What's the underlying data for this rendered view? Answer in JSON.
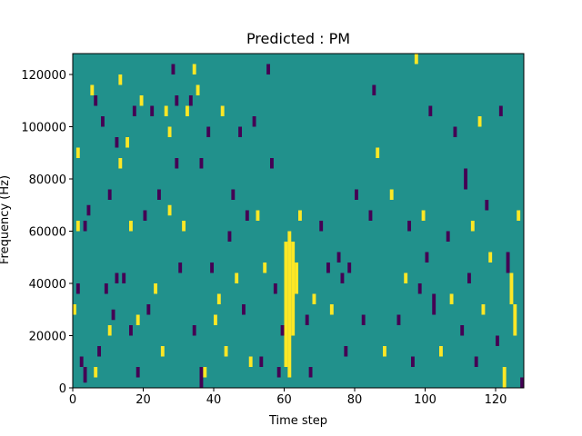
{
  "chart_data": {
    "type": "heatmap",
    "title": "Predicted : PM",
    "xlabel": "Time step",
    "ylabel": "Frequency (Hz)",
    "xlim": [
      0,
      128
    ],
    "ylim": [
      0,
      128000
    ],
    "x_ticks": [
      0,
      20,
      40,
      60,
      80,
      100,
      120
    ],
    "y_ticks": [
      0,
      20000,
      40000,
      60000,
      80000,
      100000,
      120000
    ],
    "y_tick_labels": [
      "0",
      "20000",
      "40000",
      "60000",
      "80000",
      "100000",
      "120000"
    ],
    "colormap": "viridis",
    "colors": {
      "background": "#21918c",
      "high": "#fde725",
      "low": "#440154"
    },
    "n_time_steps": 128,
    "n_frequency_bins": 128,
    "background_value": 0,
    "high_value": 1,
    "low_value": -1,
    "cells": [
      {
        "t": 1,
        "f0": 88000,
        "f1": 92000,
        "v": 1
      },
      {
        "t": 0,
        "f0": 28000,
        "f1": 32000,
        "v": 1
      },
      {
        "t": 1,
        "f0": 36000,
        "f1": 40000,
        "v": -1
      },
      {
        "t": 1,
        "f0": 60000,
        "f1": 64000,
        "v": 1
      },
      {
        "t": 3,
        "f0": 60000,
        "f1": 64000,
        "v": -1
      },
      {
        "t": 2,
        "f0": 8000,
        "f1": 12000,
        "v": -1
      },
      {
        "t": 3,
        "f0": 2000,
        "f1": 8000,
        "v": -1
      },
      {
        "t": 4,
        "f0": 66000,
        "f1": 70000,
        "v": -1
      },
      {
        "t": 5,
        "f0": 112000,
        "f1": 116000,
        "v": 1
      },
      {
        "t": 6,
        "f0": 108000,
        "f1": 112000,
        "v": -1
      },
      {
        "t": 6,
        "f0": 4000,
        "f1": 8000,
        "v": 1
      },
      {
        "t": 7,
        "f0": 12000,
        "f1": 16000,
        "v": -1
      },
      {
        "t": 8,
        "f0": 100000,
        "f1": 104000,
        "v": -1
      },
      {
        "t": 9,
        "f0": 36000,
        "f1": 40000,
        "v": -1
      },
      {
        "t": 10,
        "f0": 72000,
        "f1": 76000,
        "v": -1
      },
      {
        "t": 10,
        "f0": 20000,
        "f1": 24000,
        "v": 1
      },
      {
        "t": 11,
        "f0": 26000,
        "f1": 30000,
        "v": -1
      },
      {
        "t": 12,
        "f0": 92000,
        "f1": 96000,
        "v": -1
      },
      {
        "t": 12,
        "f0": 40000,
        "f1": 44000,
        "v": -1
      },
      {
        "t": 13,
        "f0": 116000,
        "f1": 120000,
        "v": 1
      },
      {
        "t": 13,
        "f0": 84000,
        "f1": 88000,
        "v": 1
      },
      {
        "t": 14,
        "f0": 40000,
        "f1": 44000,
        "v": -1
      },
      {
        "t": 15,
        "f0": 92000,
        "f1": 96000,
        "v": 1
      },
      {
        "t": 16,
        "f0": 20000,
        "f1": 24000,
        "v": -1
      },
      {
        "t": 16,
        "f0": 60000,
        "f1": 64000,
        "v": 1
      },
      {
        "t": 17,
        "f0": 104000,
        "f1": 108000,
        "v": -1
      },
      {
        "t": 18,
        "f0": 4000,
        "f1": 8000,
        "v": -1
      },
      {
        "t": 18,
        "f0": 24000,
        "f1": 28000,
        "v": 1
      },
      {
        "t": 19,
        "f0": 108000,
        "f1": 112000,
        "v": 1
      },
      {
        "t": 20,
        "f0": 64000,
        "f1": 68000,
        "v": -1
      },
      {
        "t": 21,
        "f0": 28000,
        "f1": 32000,
        "v": -1
      },
      {
        "t": 22,
        "f0": 104000,
        "f1": 108000,
        "v": -1
      },
      {
        "t": 23,
        "f0": 36000,
        "f1": 40000,
        "v": 1
      },
      {
        "t": 24,
        "f0": 72000,
        "f1": 76000,
        "v": -1
      },
      {
        "t": 25,
        "f0": 12000,
        "f1": 16000,
        "v": 1
      },
      {
        "t": 26,
        "f0": 104000,
        "f1": 108000,
        "v": 1
      },
      {
        "t": 27,
        "f0": 96000,
        "f1": 100000,
        "v": 1
      },
      {
        "t": 27,
        "f0": 66000,
        "f1": 70000,
        "v": 1
      },
      {
        "t": 28,
        "f0": 120000,
        "f1": 124000,
        "v": -1
      },
      {
        "t": 29,
        "f0": 84000,
        "f1": 88000,
        "v": -1
      },
      {
        "t": 29,
        "f0": 108000,
        "f1": 112000,
        "v": -1
      },
      {
        "t": 30,
        "f0": 44000,
        "f1": 48000,
        "v": -1
      },
      {
        "t": 31,
        "f0": 60000,
        "f1": 64000,
        "v": 1
      },
      {
        "t": 32,
        "f0": 104000,
        "f1": 108000,
        "v": 1
      },
      {
        "t": 33,
        "f0": 108000,
        "f1": 112000,
        "v": -1
      },
      {
        "t": 34,
        "f0": 120000,
        "f1": 124000,
        "v": 1
      },
      {
        "t": 34,
        "f0": 20000,
        "f1": 24000,
        "v": -1
      },
      {
        "t": 35,
        "f0": 112000,
        "f1": 116000,
        "v": 1
      },
      {
        "t": 36,
        "f0": 84000,
        "f1": 88000,
        "v": -1
      },
      {
        "t": 36,
        "f0": 0,
        "f1": 8000,
        "v": -1
      },
      {
        "t": 37,
        "f0": 4000,
        "f1": 8000,
        "v": 1
      },
      {
        "t": 38,
        "f0": 96000,
        "f1": 100000,
        "v": -1
      },
      {
        "t": 39,
        "f0": 44000,
        "f1": 48000,
        "v": -1
      },
      {
        "t": 40,
        "f0": 24000,
        "f1": 28000,
        "v": 1
      },
      {
        "t": 41,
        "f0": 32000,
        "f1": 36000,
        "v": 1
      },
      {
        "t": 42,
        "f0": 104000,
        "f1": 108000,
        "v": 1
      },
      {
        "t": 43,
        "f0": 12000,
        "f1": 16000,
        "v": 1
      },
      {
        "t": 44,
        "f0": 56000,
        "f1": 60000,
        "v": -1
      },
      {
        "t": 45,
        "f0": 72000,
        "f1": 76000,
        "v": -1
      },
      {
        "t": 46,
        "f0": 40000,
        "f1": 44000,
        "v": 1
      },
      {
        "t": 47,
        "f0": 96000,
        "f1": 100000,
        "v": -1
      },
      {
        "t": 48,
        "f0": 28000,
        "f1": 32000,
        "v": -1
      },
      {
        "t": 49,
        "f0": 64000,
        "f1": 68000,
        "v": -1
      },
      {
        "t": 50,
        "f0": 8000,
        "f1": 12000,
        "v": 1
      },
      {
        "t": 51,
        "f0": 100000,
        "f1": 104000,
        "v": -1
      },
      {
        "t": 52,
        "f0": 64000,
        "f1": 68000,
        "v": 1
      },
      {
        "t": 53,
        "f0": 8000,
        "f1": 12000,
        "v": -1
      },
      {
        "t": 54,
        "f0": 44000,
        "f1": 48000,
        "v": 1
      },
      {
        "t": 55,
        "f0": 120000,
        "f1": 124000,
        "v": -1
      },
      {
        "t": 56,
        "f0": 84000,
        "f1": 88000,
        "v": -1
      },
      {
        "t": 57,
        "f0": 36000,
        "f1": 40000,
        "v": -1
      },
      {
        "t": 58,
        "f0": 4000,
        "f1": 8000,
        "v": -1
      },
      {
        "t": 59,
        "f0": 20000,
        "f1": 24000,
        "v": -1
      },
      {
        "t": 60,
        "f0": 8000,
        "f1": 56000,
        "v": 1
      },
      {
        "t": 61,
        "f0": 4000,
        "f1": 60000,
        "v": 1
      },
      {
        "t": 62,
        "f0": 20000,
        "f1": 56000,
        "v": 1
      },
      {
        "t": 63,
        "f0": 36000,
        "f1": 48000,
        "v": 1
      },
      {
        "t": 64,
        "f0": 64000,
        "f1": 68000,
        "v": 1
      },
      {
        "t": 66,
        "f0": 24000,
        "f1": 28000,
        "v": -1
      },
      {
        "t": 67,
        "f0": 4000,
        "f1": 8000,
        "v": -1
      },
      {
        "t": 68,
        "f0": 32000,
        "f1": 36000,
        "v": 1
      },
      {
        "t": 70,
        "f0": 60000,
        "f1": 64000,
        "v": -1
      },
      {
        "t": 72,
        "f0": 44000,
        "f1": 48000,
        "v": -1
      },
      {
        "t": 73,
        "f0": 28000,
        "f1": 32000,
        "v": 1
      },
      {
        "t": 75,
        "f0": 48000,
        "f1": 52000,
        "v": -1
      },
      {
        "t": 76,
        "f0": 40000,
        "f1": 44000,
        "v": -1
      },
      {
        "t": 77,
        "f0": 12000,
        "f1": 16000,
        "v": -1
      },
      {
        "t": 78,
        "f0": 44000,
        "f1": 48000,
        "v": -1
      },
      {
        "t": 80,
        "f0": 72000,
        "f1": 76000,
        "v": -1
      },
      {
        "t": 82,
        "f0": 24000,
        "f1": 28000,
        "v": -1
      },
      {
        "t": 84,
        "f0": 64000,
        "f1": 68000,
        "v": -1
      },
      {
        "t": 85,
        "f0": 112000,
        "f1": 116000,
        "v": -1
      },
      {
        "t": 86,
        "f0": 88000,
        "f1": 92000,
        "v": 1
      },
      {
        "t": 88,
        "f0": 12000,
        "f1": 16000,
        "v": 1
      },
      {
        "t": 90,
        "f0": 72000,
        "f1": 76000,
        "v": 1
      },
      {
        "t": 92,
        "f0": 24000,
        "f1": 28000,
        "v": -1
      },
      {
        "t": 94,
        "f0": 40000,
        "f1": 44000,
        "v": 1
      },
      {
        "t": 95,
        "f0": 60000,
        "f1": 64000,
        "v": -1
      },
      {
        "t": 96,
        "f0": 8000,
        "f1": 12000,
        "v": -1
      },
      {
        "t": 97,
        "f0": 124000,
        "f1": 128000,
        "v": 1
      },
      {
        "t": 98,
        "f0": 36000,
        "f1": 40000,
        "v": -1
      },
      {
        "t": 99,
        "f0": 64000,
        "f1": 68000,
        "v": 1
      },
      {
        "t": 100,
        "f0": 48000,
        "f1": 52000,
        "v": -1
      },
      {
        "t": 101,
        "f0": 104000,
        "f1": 108000,
        "v": -1
      },
      {
        "t": 102,
        "f0": 28000,
        "f1": 36000,
        "v": -1
      },
      {
        "t": 104,
        "f0": 12000,
        "f1": 16000,
        "v": 1
      },
      {
        "t": 106,
        "f0": 56000,
        "f1": 60000,
        "v": -1
      },
      {
        "t": 107,
        "f0": 32000,
        "f1": 36000,
        "v": 1
      },
      {
        "t": 108,
        "f0": 96000,
        "f1": 100000,
        "v": -1
      },
      {
        "t": 110,
        "f0": 20000,
        "f1": 24000,
        "v": -1
      },
      {
        "t": 111,
        "f0": 76000,
        "f1": 84000,
        "v": -1
      },
      {
        "t": 112,
        "f0": 40000,
        "f1": 44000,
        "v": -1
      },
      {
        "t": 113,
        "f0": 60000,
        "f1": 64000,
        "v": 1
      },
      {
        "t": 114,
        "f0": 8000,
        "f1": 12000,
        "v": -1
      },
      {
        "t": 115,
        "f0": 100000,
        "f1": 104000,
        "v": 1
      },
      {
        "t": 116,
        "f0": 28000,
        "f1": 32000,
        "v": 1
      },
      {
        "t": 117,
        "f0": 68000,
        "f1": 72000,
        "v": -1
      },
      {
        "t": 118,
        "f0": 48000,
        "f1": 52000,
        "v": 1
      },
      {
        "t": 120,
        "f0": 16000,
        "f1": 20000,
        "v": -1
      },
      {
        "t": 121,
        "f0": 104000,
        "f1": 108000,
        "v": -1
      },
      {
        "t": 122,
        "f0": 0,
        "f1": 8000,
        "v": 1
      },
      {
        "t": 123,
        "f0": 44000,
        "f1": 52000,
        "v": -1
      },
      {
        "t": 124,
        "f0": 32000,
        "f1": 44000,
        "v": 1
      },
      {
        "t": 125,
        "f0": 20000,
        "f1": 32000,
        "v": 1
      },
      {
        "t": 126,
        "f0": 64000,
        "f1": 68000,
        "v": 1
      },
      {
        "t": 127,
        "f0": 0,
        "f1": 4000,
        "v": -1
      }
    ]
  }
}
